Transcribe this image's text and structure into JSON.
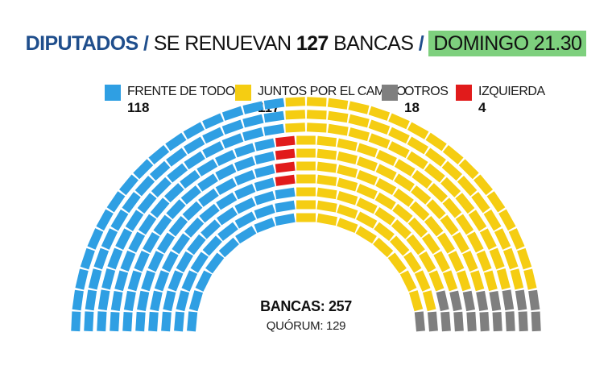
{
  "header": {
    "title_main": "DIPUTADOS",
    "sep1": "/",
    "subtitle_text": "SE RENUEVAN",
    "subtitle_number": "127",
    "subtitle_unit": "BANCAS",
    "sep2": "/",
    "date_label": "DOMINGO 21.30"
  },
  "legend": [
    {
      "label": "FRENTE DE TODOS",
      "value": "118",
      "color": "#2f9fe3"
    },
    {
      "label": "JUNTOS POR EL CAMBIO",
      "value": "117",
      "color": "#f5cd12"
    },
    {
      "label": "OTROS",
      "value": "18",
      "color": "#7f7f7f"
    },
    {
      "label": "IZQUIERDA",
      "value": "4",
      "color": "#e11b1b"
    }
  ],
  "center": {
    "main": "BANCAS: 257",
    "sub": "QUÓRUM: 129"
  },
  "chart_data": {
    "type": "parliament",
    "total_seats": 257,
    "quorum": 129,
    "series": [
      {
        "name": "FRENTE DE TODOS",
        "value": 118,
        "color": "#2f9fe3"
      },
      {
        "name": "IZQUIERDA",
        "value": 4,
        "color": "#e11b1b"
      },
      {
        "name": "JUNTOS POR EL CAMBIO",
        "value": 117,
        "color": "#f5cd12"
      },
      {
        "name": "OTROS",
        "value": 18,
        "color": "#7f7f7f"
      }
    ]
  }
}
